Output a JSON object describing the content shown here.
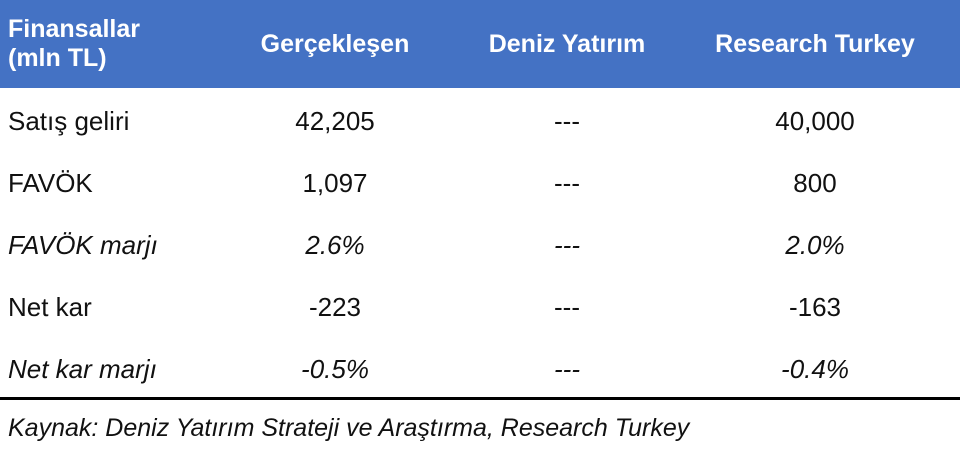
{
  "table": {
    "header": [
      "Finansallar (mln TL)",
      "Gerçekleşen",
      "Deniz Yatırım",
      "Research Turkey"
    ],
    "rows": [
      [
        "Satış geliri",
        "42,205",
        "---",
        "40,000"
      ],
      [
        "FAVÖK",
        "1,097",
        "---",
        "800"
      ],
      [
        "FAVÖK marjı",
        "2.6%",
        "---",
        "2.0%"
      ],
      [
        "Net kar",
        "-223",
        "---",
        "-163"
      ],
      [
        "Net kar marjı",
        "-0.5%",
        "---",
        "-0.4%"
      ]
    ]
  },
  "source": "Kaynak: Deniz Yatırım Strateji ve Araştırma, Research Turkey"
}
